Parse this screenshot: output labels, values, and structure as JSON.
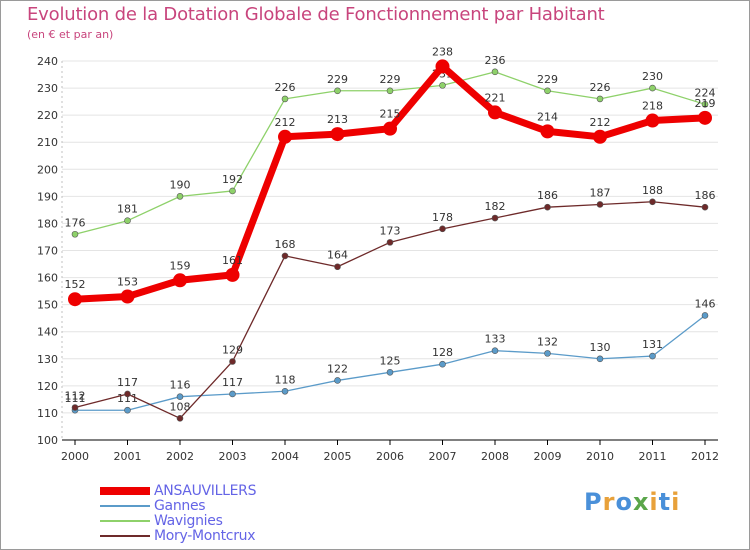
{
  "title": "Evolution de la Dotation Globale de Fonctionnement par Habitant",
  "subtitle": "(en € et par an)",
  "logo": {
    "text": "Proxiti",
    "letters": [
      "P",
      "r",
      "o",
      "x",
      "i",
      "t",
      "i"
    ],
    "colors": [
      "#4a90d9",
      "#e8a13a",
      "#4a90d9",
      "#5aa64a",
      "#e8a13a",
      "#4a90d9",
      "#e8a13a"
    ]
  },
  "chart_data": {
    "type": "line",
    "title": "Evolution de la Dotation Globale de Fonctionnement par Habitant",
    "subtitle": "(en € et par an)",
    "xlabel": "",
    "ylabel": "",
    "x": [
      2000,
      2001,
      2002,
      2003,
      2004,
      2005,
      2006,
      2007,
      2008,
      2009,
      2010,
      2011,
      2012
    ],
    "x_tick_labels": [
      "2000",
      "2001",
      "2002",
      "2003",
      "2004",
      "2005",
      "2006",
      "2007",
      "2008",
      "2009",
      "2010",
      "2011",
      "2012"
    ],
    "ylim": [
      100,
      240
    ],
    "y_ticks": [
      100,
      110,
      120,
      130,
      140,
      150,
      160,
      170,
      180,
      190,
      200,
      210,
      220,
      230,
      240
    ],
    "grid": "horizontal",
    "legend_position": "bottom-left",
    "series": [
      {
        "name": "Gannes",
        "color": "#5b9bc9",
        "emphasis": false,
        "values": [
          111,
          111,
          116,
          117,
          118,
          122,
          125,
          128,
          133,
          132,
          130,
          131,
          146
        ]
      },
      {
        "name": "Wavignies",
        "color": "#8ed16a",
        "emphasis": false,
        "values": [
          176,
          181,
          190,
          192,
          226,
          229,
          229,
          231,
          236,
          229,
          226,
          230,
          224
        ]
      },
      {
        "name": "Mory-Montcrux",
        "color": "#6e2a2a",
        "emphasis": false,
        "values": [
          112,
          117,
          108,
          129,
          168,
          164,
          173,
          178,
          182,
          186,
          187,
          188,
          186
        ]
      },
      {
        "name": "ANSAUVILLERS",
        "color": "#ee0000",
        "emphasis": true,
        "values": [
          152,
          153,
          159,
          161,
          212,
          213,
          215,
          238,
          221,
          214,
          212,
          218,
          219
        ]
      }
    ],
    "legend_order": [
      "ANSAUVILLERS",
      "Gannes",
      "Wavignies",
      "Mory-Montcrux"
    ]
  }
}
